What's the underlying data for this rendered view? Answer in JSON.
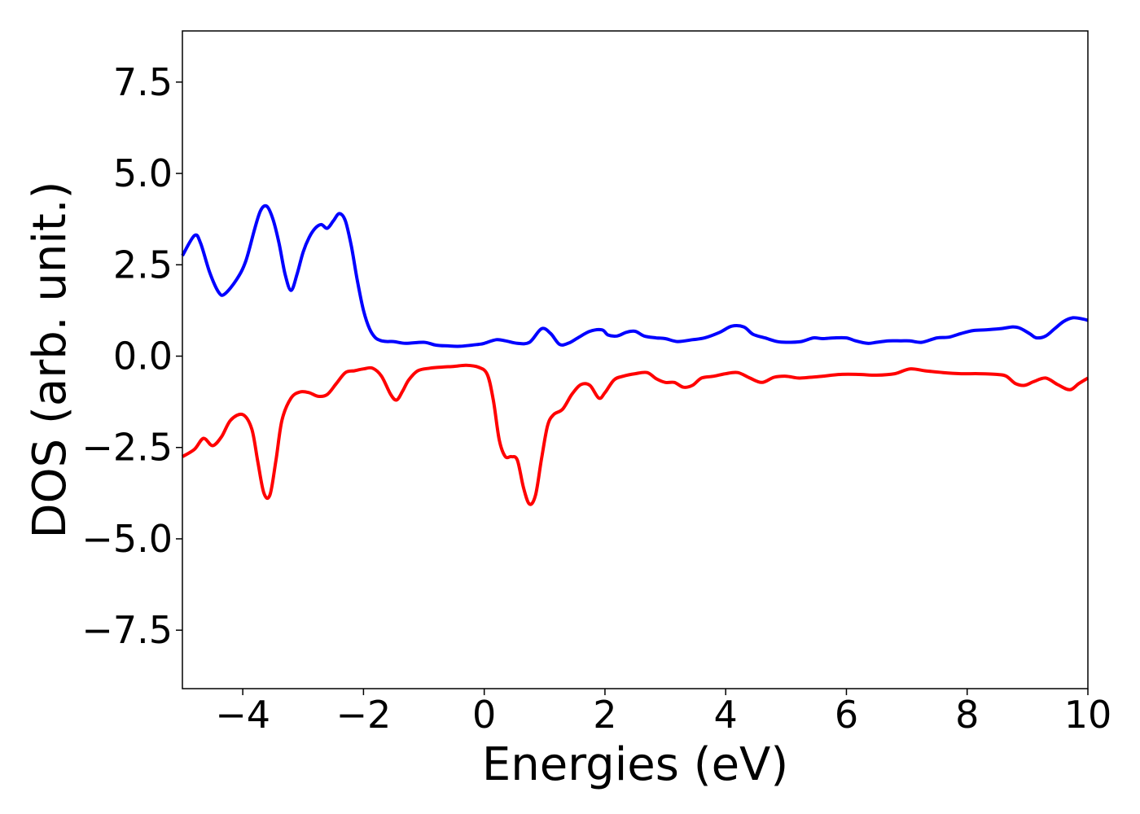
{
  "chart_data": {
    "type": "line",
    "title": "",
    "xlabel": "Energies (eV)",
    "ylabel": "DOS (arb. unit.)",
    "xlim": [
      -5,
      10
    ],
    "ylim": [
      -9.1,
      8.9
    ],
    "xticks": [
      -4,
      -2,
      0,
      2,
      4,
      6,
      8,
      10
    ],
    "xtick_labels": [
      "−4",
      "−2",
      "0",
      "2",
      "4",
      "6",
      "8",
      "10"
    ],
    "yticks": [
      7.5,
      5.0,
      2.5,
      0.0,
      -2.5,
      -5.0,
      -7.5
    ],
    "ytick_labels": [
      "7.5",
      "5.0",
      "2.5",
      "0.0",
      "−2.5",
      "−5.0",
      "−7.5"
    ],
    "grid": false,
    "legend": "none",
    "series": [
      {
        "color": "#0000ff",
        "x": [
          -5.0,
          -4.8,
          -4.7,
          -4.55,
          -4.4,
          -4.3,
          -4.1,
          -3.95,
          -3.8,
          -3.7,
          -3.6,
          -3.5,
          -3.4,
          -3.3,
          -3.2,
          -3.1,
          -3.0,
          -2.9,
          -2.8,
          -2.7,
          -2.6,
          -2.5,
          -2.4,
          -2.3,
          -2.2,
          -2.1,
          -2.0,
          -1.9,
          -1.8,
          -1.7,
          -1.6,
          -1.5,
          -1.3,
          -1.0,
          -0.8,
          -0.6,
          -0.4,
          -0.1,
          0.0,
          0.2,
          0.35,
          0.55,
          0.75,
          0.95,
          1.1,
          1.25,
          1.4,
          1.55,
          1.75,
          1.95,
          2.05,
          2.2,
          2.35,
          2.5,
          2.65,
          2.85,
          3.0,
          3.2,
          3.45,
          3.65,
          3.9,
          4.1,
          4.3,
          4.45,
          4.65,
          4.85,
          5.0,
          5.25,
          5.45,
          5.6,
          5.8,
          6.0,
          6.15,
          6.35,
          6.5,
          6.7,
          6.9,
          7.05,
          7.25,
          7.5,
          7.7,
          7.9,
          8.1,
          8.3,
          8.55,
          8.75,
          8.85,
          8.95,
          9.05,
          9.15,
          9.3,
          9.45,
          9.6,
          9.75,
          9.9,
          10.0
        ],
        "y": [
          2.75,
          3.3,
          3.1,
          2.3,
          1.75,
          1.7,
          2.1,
          2.6,
          3.5,
          4.0,
          4.1,
          3.75,
          3.1,
          2.25,
          1.8,
          2.25,
          2.85,
          3.25,
          3.5,
          3.6,
          3.5,
          3.7,
          3.9,
          3.7,
          3.0,
          2.05,
          1.25,
          0.75,
          0.5,
          0.42,
          0.4,
          0.4,
          0.35,
          0.38,
          0.3,
          0.28,
          0.27,
          0.32,
          0.35,
          0.45,
          0.42,
          0.35,
          0.38,
          0.75,
          0.62,
          0.32,
          0.36,
          0.5,
          0.68,
          0.72,
          0.58,
          0.55,
          0.65,
          0.68,
          0.55,
          0.5,
          0.48,
          0.4,
          0.45,
          0.5,
          0.65,
          0.82,
          0.8,
          0.6,
          0.5,
          0.4,
          0.38,
          0.4,
          0.5,
          0.48,
          0.5,
          0.5,
          0.42,
          0.35,
          0.38,
          0.42,
          0.42,
          0.42,
          0.38,
          0.5,
          0.52,
          0.62,
          0.7,
          0.72,
          0.75,
          0.8,
          0.78,
          0.7,
          0.6,
          0.5,
          0.55,
          0.75,
          0.95,
          1.05,
          1.02,
          0.98
        ]
      },
      {
        "color": "#ff0000",
        "x": [
          -5.0,
          -4.8,
          -4.65,
          -4.5,
          -4.35,
          -4.2,
          -4.0,
          -3.85,
          -3.75,
          -3.65,
          -3.55,
          -3.45,
          -3.35,
          -3.2,
          -3.05,
          -2.9,
          -2.75,
          -2.6,
          -2.45,
          -2.3,
          -2.15,
          -2.0,
          -1.85,
          -1.7,
          -1.55,
          -1.45,
          -1.35,
          -1.25,
          -1.1,
          -0.9,
          -0.7,
          -0.5,
          -0.3,
          -0.1,
          0.05,
          0.15,
          0.25,
          0.35,
          0.45,
          0.55,
          0.65,
          0.75,
          0.85,
          0.95,
          1.05,
          1.15,
          1.3,
          1.45,
          1.6,
          1.75,
          1.9,
          2.0,
          2.15,
          2.3,
          2.5,
          2.7,
          2.85,
          3.0,
          3.15,
          3.3,
          3.45,
          3.6,
          3.8,
          4.0,
          4.2,
          4.4,
          4.6,
          4.8,
          5.0,
          5.2,
          5.4,
          5.6,
          5.9,
          6.2,
          6.5,
          6.8,
          7.05,
          7.3,
          7.6,
          7.9,
          8.2,
          8.5,
          8.65,
          8.8,
          8.95,
          9.1,
          9.3,
          9.5,
          9.7,
          9.85,
          10.0
        ],
        "y": [
          -2.75,
          -2.55,
          -2.25,
          -2.45,
          -2.2,
          -1.75,
          -1.6,
          -2.0,
          -2.9,
          -3.75,
          -3.8,
          -2.85,
          -1.75,
          -1.15,
          -0.98,
          -1.0,
          -1.1,
          -1.05,
          -0.75,
          -0.45,
          -0.4,
          -0.35,
          -0.33,
          -0.55,
          -1.05,
          -1.2,
          -0.95,
          -0.65,
          -0.4,
          -0.33,
          -0.3,
          -0.28,
          -0.25,
          -0.3,
          -0.5,
          -1.2,
          -2.3,
          -2.75,
          -2.75,
          -2.85,
          -3.6,
          -4.05,
          -3.8,
          -2.8,
          -1.9,
          -1.6,
          -1.45,
          -1.05,
          -0.78,
          -0.8,
          -1.15,
          -1.0,
          -0.65,
          -0.55,
          -0.48,
          -0.45,
          -0.62,
          -0.72,
          -0.72,
          -0.85,
          -0.8,
          -0.6,
          -0.55,
          -0.48,
          -0.45,
          -0.6,
          -0.72,
          -0.58,
          -0.55,
          -0.6,
          -0.58,
          -0.55,
          -0.5,
          -0.5,
          -0.52,
          -0.48,
          -0.35,
          -0.4,
          -0.45,
          -0.48,
          -0.48,
          -0.5,
          -0.55,
          -0.75,
          -0.8,
          -0.7,
          -0.6,
          -0.78,
          -0.92,
          -0.75,
          -0.6
        ]
      }
    ]
  }
}
